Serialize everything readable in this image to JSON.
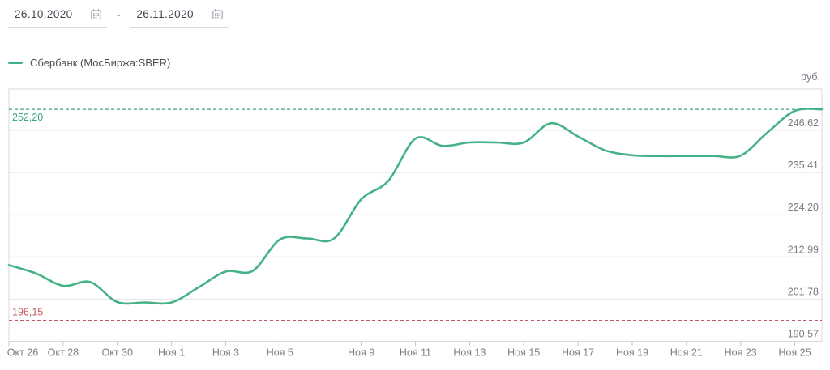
{
  "date_range": {
    "from": "26.10.2020",
    "separator": "-",
    "to": "26.11.2020"
  },
  "legend": {
    "swatch_color": "#45b286",
    "label": "Сбербанк (МосБиржа:SBER)"
  },
  "colors": {
    "series_line": "#45b286",
    "reference_high": "#3aa87a",
    "reference_low": "#c05a64",
    "gridline": "#e5e5e9",
    "plot_border": "#d9d9dd",
    "tick": "#c7c7cc",
    "axis_text": "#7b7b84"
  },
  "chart_data": {
    "type": "line",
    "title": "",
    "currency_label": "руб.",
    "grid": "horizontal",
    "legend_position": "top-left",
    "ylim": [
      190.57,
      257.6
    ],
    "series": [
      {
        "name": "Сбербанк (МосБиржа:SBER)",
        "color": "#45b286",
        "dates": [
          "Окт 26",
          "Окт 27",
          "Окт 28",
          "Окт 29",
          "Окт 30",
          "Окт 31",
          "Ноя 1",
          "Ноя 2",
          "Ноя 3",
          "Ноя 4",
          "Ноя 5",
          "Ноя 6",
          "Ноя 7",
          "Ноя 9",
          "Ноя 10",
          "Ноя 11",
          "Ноя 12",
          "Ноя 13",
          "Ноя 14",
          "Ноя 15",
          "Ноя 16",
          "Ноя 17",
          "Ноя 18",
          "Ноя 19",
          "Ноя 20",
          "Ноя 21",
          "Ноя 22",
          "Ноя 23",
          "Ноя 24",
          "Ноя 25",
          "Ноя 26"
        ],
        "values": [
          210.8,
          208.6,
          205.3,
          206.3,
          201.0,
          200.9,
          200.9,
          204.9,
          209.1,
          209.3,
          217.6,
          217.9,
          217.9,
          228.3,
          233.2,
          244.4,
          242.5,
          243.4,
          243.4,
          243.4,
          248.5,
          245.0,
          241.3,
          240.0,
          239.8,
          239.8,
          239.8,
          239.9,
          246.1,
          251.8,
          252.2
        ]
      }
    ],
    "x_tick_labels": [
      {
        "label": "Окт 26",
        "index": 0
      },
      {
        "label": "Окт 28",
        "index": 2
      },
      {
        "label": "Окт 30",
        "index": 4
      },
      {
        "label": "Ноя 1",
        "index": 6
      },
      {
        "label": "Ноя 3",
        "index": 8
      },
      {
        "label": "Ноя 5",
        "index": 10
      },
      {
        "label": "Ноя 9",
        "index": 13
      },
      {
        "label": "Ноя 11",
        "index": 15
      },
      {
        "label": "Ноя 13",
        "index": 17
      },
      {
        "label": "Ноя 15",
        "index": 19
      },
      {
        "label": "Ноя 17",
        "index": 21
      },
      {
        "label": "Ноя 19",
        "index": 23
      },
      {
        "label": "Ноя 21",
        "index": 25
      },
      {
        "label": "Ноя 23",
        "index": 27
      },
      {
        "label": "Ноя 25",
        "index": 29
      }
    ],
    "y_ticks": [
      {
        "label": "190,57",
        "value": 190.57
      },
      {
        "label": "201,78",
        "value": 201.78
      },
      {
        "label": "212,99",
        "value": 212.99
      },
      {
        "label": "224,20",
        "value": 224.2
      },
      {
        "label": "235,41",
        "value": 235.41
      },
      {
        "label": "246,62",
        "value": 246.62
      }
    ],
    "reference_lines": [
      {
        "label": "252,20",
        "value": 252.2,
        "kind": "high",
        "label_side": "below"
      },
      {
        "label": "196,15",
        "value": 196.15,
        "kind": "low",
        "label_side": "above"
      }
    ]
  }
}
